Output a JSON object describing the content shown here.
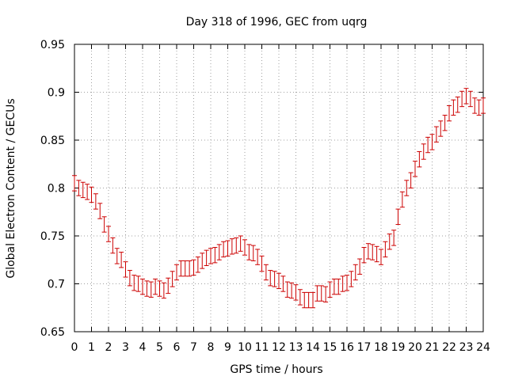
{
  "chart_data": {
    "type": "scatter",
    "title": "Day 318 of 1996, GEC from uqrg",
    "xlabel": "GPS time / hours",
    "ylabel": "Global Electron Content / GECUs",
    "xlim": [
      0,
      24
    ],
    "ylim": [
      0.65,
      0.95
    ],
    "x_ticks": [
      "0",
      "1",
      "2",
      "3",
      "4",
      "5",
      "6",
      "7",
      "8",
      "9",
      "10",
      "11",
      "12",
      "13",
      "14",
      "15",
      "16",
      "17",
      "18",
      "19",
      "20",
      "21",
      "22",
      "23",
      "24"
    ],
    "y_ticks": [
      "0.65",
      "0.7",
      "0.75",
      "0.8",
      "0.85",
      "0.9",
      "0.95"
    ],
    "grid": true,
    "error_bar_halfwidth": 0.008,
    "series_color": "#cc0000",
    "series": [
      {
        "name": "GEC",
        "x": [
          0,
          0.25,
          0.5,
          0.75,
          1,
          1.25,
          1.5,
          1.75,
          2,
          2.25,
          2.5,
          2.75,
          3,
          3.25,
          3.5,
          3.75,
          4,
          4.25,
          4.5,
          4.75,
          5,
          5.25,
          5.5,
          5.75,
          6,
          6.25,
          6.5,
          6.75,
          7,
          7.25,
          7.5,
          7.75,
          8,
          8.25,
          8.5,
          8.75,
          9,
          9.25,
          9.5,
          9.75,
          10,
          10.25,
          10.5,
          10.75,
          11,
          11.25,
          11.5,
          11.75,
          12,
          12.25,
          12.5,
          12.75,
          13,
          13.25,
          13.5,
          13.75,
          14,
          14.25,
          14.5,
          14.75,
          15,
          15.25,
          15.5,
          15.75,
          16,
          16.25,
          16.5,
          16.75,
          17,
          17.25,
          17.5,
          17.75,
          18,
          18.25,
          18.5,
          18.75,
          19,
          19.25,
          19.5,
          19.75,
          20,
          20.25,
          20.5,
          20.75,
          21,
          21.25,
          21.5,
          21.75,
          22,
          22.25,
          22.5,
          22.75,
          23,
          23.25,
          23.5,
          23.75,
          24
        ],
        "y": [
          0.805,
          0.8,
          0.798,
          0.796,
          0.793,
          0.786,
          0.776,
          0.762,
          0.752,
          0.74,
          0.729,
          0.725,
          0.715,
          0.706,
          0.701,
          0.7,
          0.697,
          0.695,
          0.694,
          0.697,
          0.695,
          0.693,
          0.698,
          0.705,
          0.712,
          0.716,
          0.716,
          0.716,
          0.717,
          0.72,
          0.724,
          0.727,
          0.729,
          0.73,
          0.733,
          0.736,
          0.737,
          0.739,
          0.74,
          0.742,
          0.738,
          0.733,
          0.732,
          0.728,
          0.721,
          0.712,
          0.706,
          0.705,
          0.703,
          0.7,
          0.694,
          0.693,
          0.691,
          0.686,
          0.683,
          0.683,
          0.683,
          0.69,
          0.69,
          0.689,
          0.694,
          0.697,
          0.697,
          0.7,
          0.701,
          0.705,
          0.712,
          0.718,
          0.73,
          0.734,
          0.733,
          0.731,
          0.728,
          0.736,
          0.744,
          0.748,
          0.77,
          0.788,
          0.8,
          0.808,
          0.82,
          0.83,
          0.838,
          0.845,
          0.848,
          0.856,
          0.862,
          0.868,
          0.878,
          0.884,
          0.887,
          0.893,
          0.896,
          0.893,
          0.886,
          0.884,
          0.886
        ]
      }
    ]
  }
}
